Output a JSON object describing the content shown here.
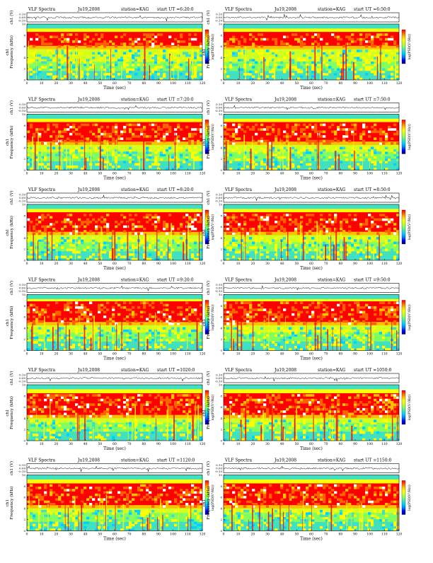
{
  "colors": {
    "scale": [
      "#000080",
      "#0000ff",
      "#0080ff",
      "#00d0ff",
      "#40e0c0",
      "#80ff60",
      "#d0ff20",
      "#ffff00",
      "#ffc000",
      "#ff6000",
      "#ff0000"
    ],
    "trace": "#000000"
  },
  "labels": {
    "ch": "ch1 (V)",
    "freq_prefix": "ch1",
    "freq": "Frequency (kHz)",
    "time": "Time (sec)",
    "cbar": "log(PSD(V²/Hz))"
  },
  "chart_data": [
    {
      "type": "heatmap",
      "title": "VLF Spectra",
      "date": "Ju19,2008",
      "station": "station=KAG",
      "start": "start UT =6:20:0",
      "xlim": [
        0,
        120
      ],
      "ylim": [
        0,
        10
      ],
      "xticks": [
        0,
        10,
        20,
        30,
        40,
        50,
        60,
        70,
        80,
        90,
        100,
        110,
        120
      ],
      "yticks": [
        0,
        2,
        4,
        6,
        8,
        10
      ],
      "trace_ticks": [
        "0.10",
        "0.00",
        "-0.10"
      ],
      "top_band_khz": [
        9.2,
        10
      ],
      "core_khz": [
        5.5,
        8.6
      ]
    },
    {
      "type": "heatmap",
      "title": "VLF Spectra",
      "date": "Ju19,2008",
      "station": "station=KAG",
      "start": "start UT =6:50:0",
      "xlim": [
        0,
        120
      ],
      "ylim": [
        0,
        10
      ],
      "xticks": [
        0,
        10,
        20,
        30,
        40,
        50,
        60,
        70,
        80,
        90,
        100,
        110,
        120
      ],
      "yticks": [
        0,
        2,
        4,
        6,
        8,
        10
      ],
      "trace_ticks": [
        "0.10",
        "0.00",
        "-0.10"
      ],
      "top_band_khz": [
        9.2,
        10
      ],
      "core_khz": [
        5.5,
        8.6
      ]
    },
    {
      "type": "heatmap",
      "title": "VLF Spectra",
      "date": "Ju19,2008",
      "station": "station=KAG",
      "start": "start UT =7:20:0",
      "xlim": [
        0,
        120
      ],
      "ylim": [
        0,
        10
      ],
      "xticks": [
        0,
        10,
        20,
        30,
        40,
        50,
        60,
        70,
        80,
        90,
        100,
        110,
        120
      ],
      "yticks": [
        0,
        2,
        4,
        6,
        8,
        10
      ],
      "trace_ticks": [
        "0.10",
        "0.00",
        "-0.10"
      ],
      "top_band_khz": [
        9.2,
        10
      ],
      "core_khz": [
        4.5,
        8.6
      ]
    },
    {
      "type": "heatmap",
      "title": "VLF Spectra",
      "date": "Ju19,2008",
      "station": "station=KAG",
      "start": "start UT =7:50:0",
      "xlim": [
        0,
        120
      ],
      "ylim": [
        0,
        10
      ],
      "xticks": [
        0,
        10,
        20,
        30,
        40,
        50,
        60,
        70,
        80,
        90,
        100,
        110,
        120
      ],
      "yticks": [
        0,
        2,
        4,
        6,
        8,
        10
      ],
      "trace_ticks": [
        "0.10",
        "0.00",
        "-0.10"
      ],
      "top_band_khz": [
        9.2,
        10
      ],
      "core_khz": [
        4.5,
        8.6
      ]
    },
    {
      "type": "heatmap",
      "title": "VLF Spectra",
      "date": "Ju19,2008",
      "station": "station=KAG",
      "start": "start UT =8:20:0",
      "xlim": [
        0,
        120
      ],
      "ylim": [
        0,
        10
      ],
      "xticks": [
        0,
        10,
        20,
        30,
        40,
        50,
        60,
        70,
        80,
        90,
        100,
        110,
        120
      ],
      "yticks": [
        0,
        2,
        4,
        6,
        8,
        10
      ],
      "trace_ticks": [
        "0.10",
        "0.00",
        "-0.10"
      ],
      "top_band_khz": [
        9.2,
        10
      ],
      "core_khz": [
        4.5,
        8.6
      ]
    },
    {
      "type": "heatmap",
      "title": "VLF Spectra",
      "date": "Ju19,2008",
      "station": "station=KAG",
      "start": "start UT =8:50:0",
      "xlim": [
        0,
        120
      ],
      "ylim": [
        0,
        10
      ],
      "xticks": [
        0,
        10,
        20,
        30,
        40,
        50,
        60,
        70,
        80,
        90,
        100,
        110,
        120
      ],
      "yticks": [
        0,
        2,
        4,
        6,
        8,
        10
      ],
      "trace_ticks": [
        "0.10",
        "0.00",
        "-0.10"
      ],
      "top_band_khz": [
        9.2,
        10
      ],
      "core_khz": [
        4.5,
        8.6
      ]
    },
    {
      "type": "heatmap",
      "title": "VLF Spectra",
      "date": "Ju19,2008",
      "station": "station=KAG",
      "start": "start UT =9:20:0",
      "xlim": [
        0,
        120
      ],
      "ylim": [
        0,
        10
      ],
      "xticks": [
        0,
        10,
        20,
        30,
        40,
        50,
        60,
        70,
        80,
        90,
        100,
        110,
        120
      ],
      "yticks": [
        0,
        2,
        4,
        6,
        8,
        10
      ],
      "trace_ticks": [
        "0.10",
        "0.00",
        "-0.10"
      ],
      "top_band_khz": [
        9.2,
        10
      ],
      "core_khz": [
        4.5,
        8.8
      ]
    },
    {
      "type": "heatmap",
      "title": "VLF Spectra",
      "date": "Ju19,2008",
      "station": "station=KAG",
      "start": "start UT =9:50:0",
      "xlim": [
        0,
        120
      ],
      "ylim": [
        0,
        10
      ],
      "xticks": [
        0,
        10,
        20,
        30,
        40,
        50,
        60,
        70,
        80,
        90,
        100,
        110,
        120
      ],
      "yticks": [
        0,
        2,
        4,
        6,
        8,
        10
      ],
      "trace_ticks": [
        "0.10",
        "0.00",
        "-0.10"
      ],
      "top_band_khz": [
        9.2,
        10
      ],
      "core_khz": [
        4.5,
        8.8
      ]
    },
    {
      "type": "heatmap",
      "title": "VLF Spectra",
      "date": "Ju19,2008",
      "station": "station=KAG",
      "start": "start UT =1020:0",
      "xlim": [
        0,
        120
      ],
      "ylim": [
        0,
        10
      ],
      "xticks": [
        0,
        10,
        20,
        30,
        40,
        50,
        60,
        70,
        80,
        90,
        100,
        110,
        120
      ],
      "yticks": [
        0,
        2,
        4,
        6,
        8,
        10
      ],
      "trace_ticks": [
        "0.10",
        "0.00",
        "-0.10"
      ],
      "top_band_khz": [
        9.2,
        10
      ],
      "core_khz": [
        4.0,
        8.5
      ]
    },
    {
      "type": "heatmap",
      "title": "VLF Spectra",
      "date": "Ju19,2008",
      "station": "station=KAG",
      "start": "start UT =1050:0",
      "xlim": [
        0,
        120
      ],
      "ylim": [
        0,
        10
      ],
      "xticks": [
        0,
        10,
        20,
        30,
        40,
        50,
        60,
        70,
        80,
        90,
        100,
        110,
        120
      ],
      "yticks": [
        0,
        2,
        4,
        6,
        8,
        10
      ],
      "trace_ticks": [
        "0.10",
        "0.00",
        "-0.10"
      ],
      "top_band_khz": [
        9.2,
        10
      ],
      "core_khz": [
        4.0,
        8.5
      ]
    },
    {
      "type": "heatmap",
      "title": "VLF Spectra",
      "date": "Ju19,2008",
      "station": "station=KAG",
      "start": "start UT =1120:0",
      "xlim": [
        0,
        120
      ],
      "ylim": [
        0,
        10
      ],
      "xticks": [
        0,
        10,
        20,
        30,
        40,
        50,
        60,
        70,
        80,
        90,
        100,
        110,
        120
      ],
      "yticks": [
        0,
        2,
        4,
        6,
        8,
        10
      ],
      "trace_ticks": [
        "0.10",
        "0.00",
        "-0.10"
      ],
      "top_band_khz": [
        9.2,
        10
      ],
      "core_khz": [
        4.0,
        8.5
      ]
    },
    {
      "type": "heatmap",
      "title": "VLF Spectra",
      "date": "Ju19,2008",
      "station": "station=KAG",
      "start": "start UT =1150:0",
      "xlim": [
        0,
        120
      ],
      "ylim": [
        0,
        10
      ],
      "xticks": [
        0,
        10,
        20,
        30,
        40,
        50,
        60,
        70,
        80,
        90,
        100,
        110,
        120
      ],
      "yticks": [
        0,
        2,
        4,
        6,
        8,
        10
      ],
      "trace_ticks": [
        "0.10",
        "0.00",
        "-0.10"
      ],
      "top_band_khz": [
        9.2,
        10
      ],
      "core_khz": [
        4.0,
        8.5
      ]
    }
  ]
}
